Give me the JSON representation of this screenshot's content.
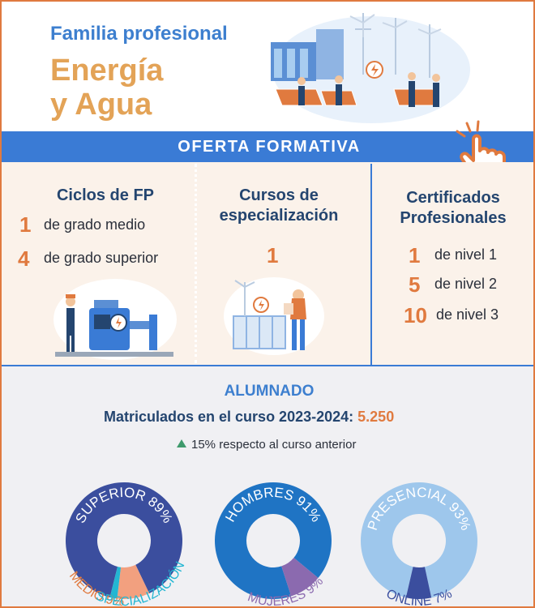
{
  "header": {
    "subtitle": "Familia profesional",
    "title_line1": "Energía",
    "title_line2": "y Agua"
  },
  "banner": {
    "label": "OFERTA FORMATIVA"
  },
  "offer": {
    "ciclos": {
      "heading": "Ciclos de FP",
      "rows": [
        {
          "num": "1",
          "label": "de grado medio"
        },
        {
          "num": "4",
          "label": "de grado superior"
        }
      ]
    },
    "cursos": {
      "heading_line1": "Cursos de",
      "heading_line2": "especialización",
      "num": "1"
    },
    "certificados": {
      "heading_line1": "Certificados",
      "heading_line2": "Profesionales",
      "rows": [
        {
          "num": "1",
          "label": "de nivel 1"
        },
        {
          "num": "5",
          "label": "de nivel 2"
        },
        {
          "num": "10",
          "label": "de nivel 3"
        }
      ]
    }
  },
  "alumnado": {
    "title": "ALUMNADO",
    "enrolled_label": "Matriculados en el curso 2023-2024:",
    "enrolled_value": "5.250",
    "trend_text": "15% respecto al curso anterior"
  },
  "colors": {
    "brand_blue": "#3a7bd5",
    "navy": "#24456f",
    "orange": "#e07a3f",
    "gold": "#e3a357",
    "trend_green": "#3f9a6c"
  },
  "chart_data": [
    {
      "type": "pie",
      "labels": [
        "SUPERIOR 89%",
        "MEDIO 9%",
        "C. ESPECIALIZACIÓN 2%"
      ],
      "values": [
        89,
        9,
        2
      ],
      "colors": [
        "#3b4e9e",
        "#f2a07f",
        "#23b6d2"
      ],
      "label_colors": [
        "#ffffff",
        "#e07a3f",
        "#23b6d2"
      ]
    },
    {
      "type": "pie",
      "labels": [
        "HOMBRES 91%",
        "MUJERES 9%"
      ],
      "values": [
        91,
        9
      ],
      "colors": [
        "#1f74c4",
        "#8b6aaf"
      ],
      "label_colors": [
        "#ffffff",
        "#8b6aaf"
      ]
    },
    {
      "type": "pie",
      "labels": [
        "PRESENCIAL 93%",
        "ONLINE 7%"
      ],
      "values": [
        93,
        7
      ],
      "colors": [
        "#9ec7ec",
        "#3b4e9e"
      ],
      "label_colors": [
        "#ffffff",
        "#3b4e9e"
      ]
    }
  ]
}
